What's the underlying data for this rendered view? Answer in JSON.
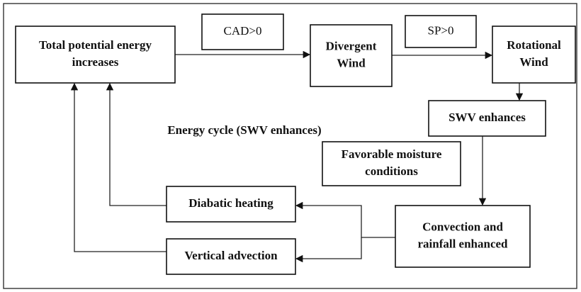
{
  "title": [
    "Energy cycle (SWV enhances)"
  ],
  "nodes": [
    {
      "lines": [
        "Total potential energy",
        "increases"
      ],
      "bold": true
    },
    {
      "lines": [
        "CAD>0"
      ],
      "bold": false
    },
    {
      "lines": [
        "Divergent",
        "Wind"
      ],
      "bold": true
    },
    {
      "lines": [
        "SP>0"
      ],
      "bold": false
    },
    {
      "lines": [
        "Rotational",
        "Wind"
      ],
      "bold": true
    },
    {
      "lines": [
        "SWV enhances"
      ],
      "bold": true
    },
    {
      "lines": [
        "Favorable  moisture",
        "conditions"
      ],
      "bold": true
    },
    {
      "lines": [
        "Diabatic heating"
      ],
      "bold": true
    },
    {
      "lines": [
        "Vertical advection"
      ],
      "bold": true
    },
    {
      "lines": [
        "Convection and",
        "rainfall enhanced"
      ],
      "bold": true
    }
  ]
}
